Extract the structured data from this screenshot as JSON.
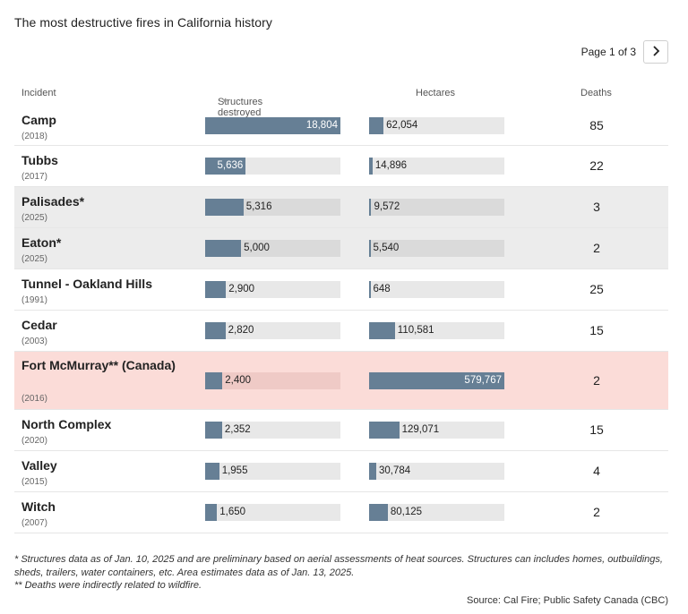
{
  "title": "The most destructive fires in California history",
  "pager": {
    "label": "Page 1 of 3",
    "next_icon": "chevron-right-icon"
  },
  "columns": {
    "incident": "Incident",
    "structures": "Structures destroyed",
    "hectares": "Hectares",
    "deaths": "Deaths"
  },
  "chart_data": {
    "type": "table",
    "structures_max": 18804,
    "hectares_max": 579767,
    "rows": [
      {
        "name": "Camp",
        "year": "(2018)",
        "structures": 18804,
        "structures_label": "18,804",
        "hectares": 62054,
        "hectares_label": "62,054",
        "deaths": "85",
        "style": "plain"
      },
      {
        "name": "Tubbs",
        "year": "(2017)",
        "structures": 5636,
        "structures_label": "5,636",
        "hectares": 14896,
        "hectares_label": "14,896",
        "deaths": "22",
        "style": "plain"
      },
      {
        "name": "Palisades*",
        "year": "(2025)",
        "structures": 5316,
        "structures_label": "5,316",
        "hectares": 9572,
        "hectares_label": "9,572",
        "deaths": "3",
        "style": "shaded"
      },
      {
        "name": "Eaton*",
        "year": "(2025)",
        "structures": 5000,
        "structures_label": "5,000",
        "hectares": 5540,
        "hectares_label": "5,540",
        "deaths": "2",
        "style": "shaded"
      },
      {
        "name": "Tunnel - Oakland Hills",
        "year": "(1991)",
        "structures": 2900,
        "structures_label": "2,900",
        "hectares": 648,
        "hectares_label": "648",
        "deaths": "25",
        "style": "plain"
      },
      {
        "name": "Cedar",
        "year": "(2003)",
        "structures": 2820,
        "structures_label": "2,820",
        "hectares": 110581,
        "hectares_label": "110,581",
        "deaths": "15",
        "style": "plain"
      },
      {
        "name": "Fort McMurray** (Canada)",
        "year": "(2016)",
        "structures": 2400,
        "structures_label": "2,400",
        "hectares": 579767,
        "hectares_label": "579,767",
        "deaths": "2",
        "style": "highlight"
      },
      {
        "name": "North Complex",
        "year": "(2020)",
        "structures": 2352,
        "structures_label": "2,352",
        "hectares": 129071,
        "hectares_label": "129,071",
        "deaths": "15",
        "style": "plain"
      },
      {
        "name": "Valley",
        "year": "(2015)",
        "structures": 1955,
        "structures_label": "1,955",
        "hectares": 30784,
        "hectares_label": "30,784",
        "deaths": "4",
        "style": "plain"
      },
      {
        "name": "Witch",
        "year": "(2007)",
        "structures": 1650,
        "structures_label": "1,650",
        "hectares": 80125,
        "hectares_label": "80,125",
        "deaths": "2",
        "style": "plain"
      }
    ]
  },
  "notes": {
    "line1": "* Structures data as of Jan. 10, 2025 and are preliminary based on aerial assessments of heat sources. Structures can includes homes, outbuildings, sheds, trailers, water containers, etc. Area estimates data as of Jan. 13, 2025.",
    "line2": "** Deaths were indirectly related to wildfire."
  },
  "source": "Source: Cal Fire; Public Safety Canada (CBC)",
  "colors": {
    "bar": "#667f95",
    "highlight_row": "#fbdcd8",
    "shaded_row": "#ececec"
  }
}
